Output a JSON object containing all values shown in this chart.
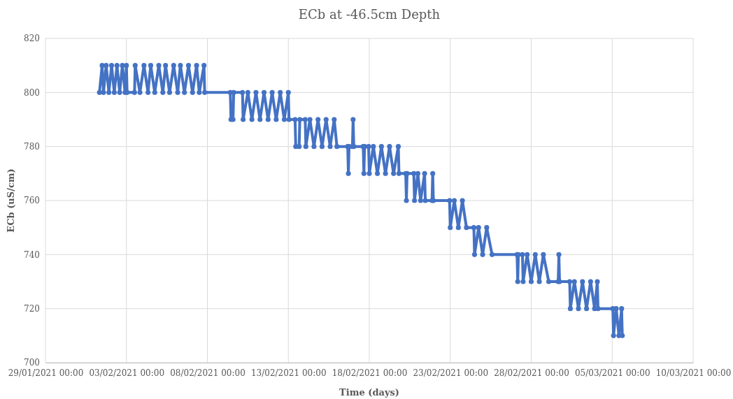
{
  "chart_data": {
    "type": "line",
    "title": "ECb at -46.5cm Depth",
    "xlabel": "Time (days)",
    "ylabel": "ECb (uS/cm)",
    "xlim": [
      "2021-01-29",
      "2021-03-10"
    ],
    "xticks": [
      {
        "value": "2021-01-29",
        "label": "29/01/2021 00:00"
      },
      {
        "value": "2021-02-03",
        "label": "03/02/2021 00:00"
      },
      {
        "value": "2021-02-08",
        "label": "08/02/2021 00:00"
      },
      {
        "value": "2021-02-13",
        "label": "13/02/2021 00:00"
      },
      {
        "value": "2021-02-18",
        "label": "18/02/2021 00:00"
      },
      {
        "value": "2021-02-23",
        "label": "23/02/2021 00:00"
      },
      {
        "value": "2021-02-28",
        "label": "28/02/2021 00:00"
      },
      {
        "value": "2021-03-05",
        "label": "05/03/2021 00:00"
      },
      {
        "value": "2021-03-10",
        "label": "10/03/2021 00:00"
      }
    ],
    "ylim": [
      700,
      820
    ],
    "yticks": [
      700,
      720,
      740,
      760,
      780,
      800,
      820
    ],
    "grid": true,
    "marker": "circle",
    "line_style": "solid",
    "x": [
      "2021-02-01T08:00",
      "2021-02-01T12:00",
      "2021-02-01T14:00",
      "2021-02-01T18:00",
      "2021-02-01T22:00",
      "2021-02-02T02:00",
      "2021-02-02T06:00",
      "2021-02-02T10:00",
      "2021-02-02T14:00",
      "2021-02-02T18:00",
      "2021-02-02T22:00",
      "2021-02-03T00:00",
      "2021-02-03T01:00",
      "2021-02-03T12:00",
      "2021-02-03T13:00",
      "2021-02-03T20:00",
      "2021-02-04T02:00",
      "2021-02-04T08:00",
      "2021-02-04T12:00",
      "2021-02-04T18:00",
      "2021-02-05T00:00",
      "2021-02-05T06:00",
      "2021-02-05T10:00",
      "2021-02-05T16:00",
      "2021-02-05T22:00",
      "2021-02-06T04:00",
      "2021-02-06T08:00",
      "2021-02-06T14:00",
      "2021-02-06T20:00",
      "2021-02-07T02:00",
      "2021-02-07T08:00",
      "2021-02-07T12:00",
      "2021-02-07T19:00",
      "2021-02-07T20:00",
      "2021-02-09T10:00",
      "2021-02-09T11:00",
      "2021-02-09T14:00",
      "2021-02-09T15:00",
      "2021-02-10T04:00",
      "2021-02-10T05:00",
      "2021-02-10T12:00",
      "2021-02-10T18:00",
      "2021-02-11T00:00",
      "2021-02-11T06:00",
      "2021-02-11T12:00",
      "2021-02-11T18:00",
      "2021-02-12T00:00",
      "2021-02-12T06:00",
      "2021-02-12T12:00",
      "2021-02-12T18:00",
      "2021-02-13T00:00",
      "2021-02-13T01:00",
      "2021-02-13T10:00",
      "2021-02-13T11:00",
      "2021-02-13T16:00",
      "2021-02-13T17:00",
      "2021-02-14T01:00",
      "2021-02-14T02:00",
      "2021-02-14T08:00",
      "2021-02-14T14:00",
      "2021-02-14T20:00",
      "2021-02-15T02:00",
      "2021-02-15T08:00",
      "2021-02-15T14:00",
      "2021-02-15T20:00",
      "2021-02-16T00:00",
      "2021-02-16T16:00",
      "2021-02-16T17:00",
      "2021-02-16T18:00",
      "2021-02-16T23:00",
      "2021-02-17T00:00",
      "2021-02-17T01:00",
      "2021-02-17T15:00",
      "2021-02-17T16:00",
      "2021-02-17T17:00",
      "2021-02-17T23:00",
      "2021-02-18T00:00",
      "2021-02-18T06:00",
      "2021-02-18T12:00",
      "2021-02-18T18:00",
      "2021-02-19T00:00",
      "2021-02-19T06:00",
      "2021-02-19T12:00",
      "2021-02-19T19:00",
      "2021-02-19T20:00",
      "2021-02-20T06:00",
      "2021-02-20T07:00",
      "2021-02-20T08:00",
      "2021-02-20T18:00",
      "2021-02-20T19:00",
      "2021-02-21T00:00",
      "2021-02-21T04:00",
      "2021-02-21T10:00",
      "2021-02-21T11:00",
      "2021-02-21T21:00",
      "2021-02-21T22:00",
      "2021-02-21T23:00",
      "2021-02-22T23:00",
      "2021-02-23T00:00",
      "2021-02-23T06:00",
      "2021-02-23T12:00",
      "2021-02-23T18:00",
      "2021-02-24T00:00",
      "2021-02-24T11:00",
      "2021-02-24T12:00",
      "2021-02-24T18:00",
      "2021-02-25T00:00",
      "2021-02-25T06:00",
      "2021-02-25T14:00",
      "2021-02-27T03:00",
      "2021-02-27T04:00",
      "2021-02-27T05:00",
      "2021-02-27T11:00",
      "2021-02-27T12:00",
      "2021-02-27T18:00",
      "2021-02-28T00:00",
      "2021-02-28T06:00",
      "2021-02-28T12:00",
      "2021-02-28T18:00",
      "2021-03-01T02:00",
      "2021-03-01T16:00",
      "2021-03-01T17:00",
      "2021-03-01T18:00",
      "2021-03-02T09:00",
      "2021-03-02T10:00",
      "2021-03-02T16:00",
      "2021-03-02T22:00",
      "2021-03-03T04:00",
      "2021-03-03T10:00",
      "2021-03-03T16:00",
      "2021-03-03T22:00",
      "2021-03-04T02:00",
      "2021-03-04T03:00",
      "2021-03-05T01:00",
      "2021-03-05T02:00",
      "2021-03-05T06:00",
      "2021-03-05T10:00",
      "2021-03-05T14:00",
      "2021-03-05T15:00"
    ],
    "series": [
      {
        "color": "#4472c4",
        "values": [
          800,
          810,
          800,
          810,
          800,
          810,
          800,
          810,
          800,
          810,
          800,
          810,
          800,
          800,
          810,
          800,
          810,
          800,
          810,
          800,
          810,
          800,
          810,
          800,
          810,
          800,
          810,
          800,
          810,
          800,
          810,
          800,
          810,
          800,
          800,
          790,
          790,
          800,
          800,
          790,
          800,
          790,
          800,
          790,
          800,
          790,
          800,
          790,
          800,
          790,
          800,
          790,
          790,
          780,
          780,
          790,
          790,
          780,
          790,
          780,
          790,
          780,
          790,
          780,
          790,
          780,
          780,
          770,
          780,
          780,
          790,
          780,
          780,
          770,
          780,
          780,
          770,
          780,
          770,
          780,
          770,
          780,
          770,
          780,
          770,
          770,
          760,
          770,
          770,
          760,
          770,
          760,
          770,
          760,
          760,
          770,
          760,
          760,
          750,
          760,
          750,
          760,
          750,
          750,
          740,
          750,
          740,
          750,
          740,
          740,
          730,
          740,
          740,
          730,
          740,
          730,
          740,
          730,
          740,
          730,
          730,
          740,
          730,
          730,
          720,
          730,
          720,
          730,
          720,
          730,
          720,
          730,
          720,
          720,
          710,
          720,
          710,
          720,
          710
        ]
      }
    ]
  }
}
